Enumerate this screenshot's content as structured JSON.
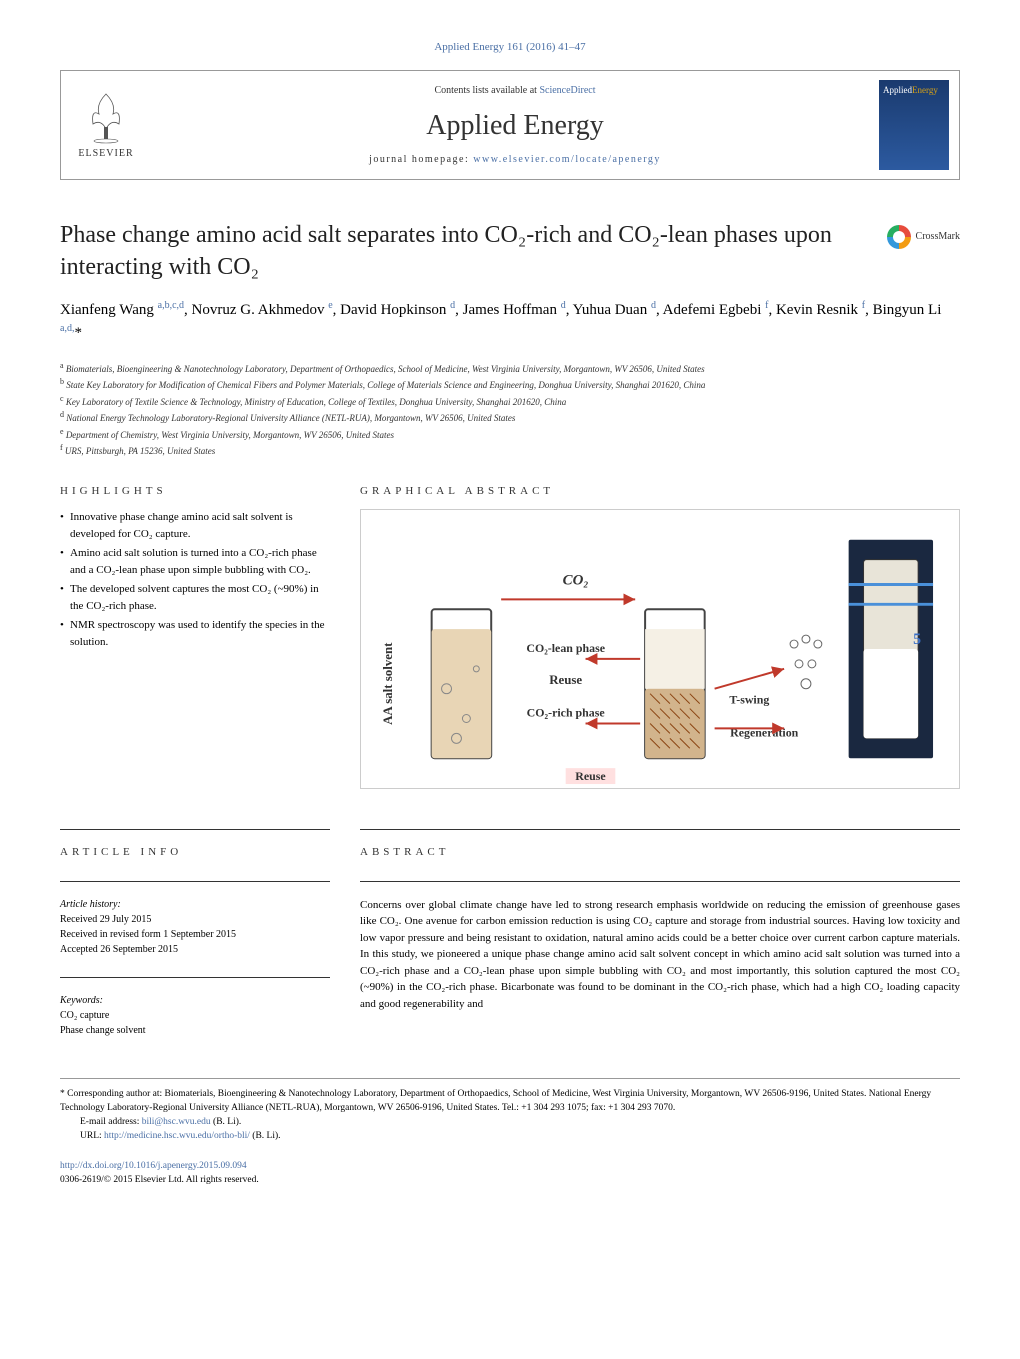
{
  "journal_ref": "Applied Energy 161 (2016) 41–47",
  "header": {
    "contents_prefix": "Contents lists available at ",
    "contents_link": "ScienceDirect",
    "journal_name": "Applied Energy",
    "homepage_prefix": "journal homepage: ",
    "homepage_link": "www.elsevier.com/locate/apenergy",
    "elsevier_label": "ELSEVIER",
    "cover_applied": "Applied",
    "cover_energy": "Energy"
  },
  "crossmark": "CrossMark",
  "title": "Phase change amino acid salt separates into CO₂-rich and CO₂-lean phases upon interacting with CO₂",
  "authors_html": "Xianfeng Wang <sup>a,b,c,d</sup>, Novruz G. Akhmedov <sup>e</sup>, David Hopkinson <sup>d</sup>, James Hoffman <sup>d</sup>, Yuhua Duan <sup>d</sup>, Adefemi Egbebi <sup>f</sup>, Kevin Resnik <sup>f</sup>, Bingyun Li <sup>a,d,</sup>*",
  "affiliations": [
    {
      "sup": "a",
      "text": "Biomaterials, Bioengineering & Nanotechnology Laboratory, Department of Orthopaedics, School of Medicine, West Virginia University, Morgantown, WV 26506, United States"
    },
    {
      "sup": "b",
      "text": "State Key Laboratory for Modification of Chemical Fibers and Polymer Materials, College of Materials Science and Engineering, Donghua University, Shanghai 201620, China"
    },
    {
      "sup": "c",
      "text": "Key Laboratory of Textile Science & Technology, Ministry of Education, College of Textiles, Donghua University, Shanghai 201620, China"
    },
    {
      "sup": "d",
      "text": "National Energy Technology Laboratory-Regional University Alliance (NETL-RUA), Morgantown, WV 26506, United States"
    },
    {
      "sup": "e",
      "text": "Department of Chemistry, West Virginia University, Morgantown, WV 26506, United States"
    },
    {
      "sup": "f",
      "text": "URS, Pittsburgh, PA 15236, United States"
    }
  ],
  "highlights_heading": "HIGHLIGHTS",
  "highlights": [
    "Innovative phase change amino acid salt solvent is developed for CO₂ capture.",
    "Amino acid salt solution is turned into a CO₂-rich phase and a CO₂-lean phase upon simple bubbling with CO₂.",
    "The developed solvent captures the most CO₂ (~90%) in the CO₂-rich phase.",
    "NMR spectroscopy was used to identify the species in the solution."
  ],
  "graphical_heading": "GRAPHICAL ABSTRACT",
  "graphical": {
    "co2_label": "CO₂",
    "ylabel": "AA salt solvent",
    "lean_label": "CO₂-lean phase",
    "rich_label": "CO₂-rich phase",
    "reuse_label": "Reuse",
    "tswing_label": "T-swing",
    "regen_label": "Regeneration",
    "reuse2_label": "Reuse",
    "vial_num": "5",
    "arrow_color": "#c0392b",
    "text_color": "#333333",
    "hatch_color": "#8b4513",
    "fill_color": "#d2b48c",
    "border_color": "#444444"
  },
  "article_info_heading": "ARTICLE INFO",
  "article_info": {
    "history_label": "Article history:",
    "received": "Received 29 July 2015",
    "revised": "Received in revised form 1 September 2015",
    "accepted": "Accepted 26 September 2015",
    "keywords_label": "Keywords:",
    "keywords": [
      "CO₂ capture",
      "Phase change solvent"
    ]
  },
  "abstract_heading": "ABSTRACT",
  "abstract": "Concerns over global climate change have led to strong research emphasis worldwide on reducing the emission of greenhouse gases like CO₂. One avenue for carbon emission reduction is using CO₂ capture and storage from industrial sources. Having low toxicity and low vapor pressure and being resistant to oxidation, natural amino acids could be a better choice over current carbon capture materials. In this study, we pioneered a unique phase change amino acid salt solvent concept in which amino acid salt solution was turned into a CO₂-rich phase and a CO₂-lean phase upon simple bubbling with CO₂ and most importantly, this solution captured the most CO₂ (~90%) in the CO₂-rich phase. Bicarbonate was found to be dominant in the CO₂-rich phase, which had a high CO₂ loading capacity and good regenerability and",
  "footnote": {
    "corr_symbol": "*",
    "corr_text": "Corresponding author at: Biomaterials, Bioengineering & Nanotechnology Laboratory, Department of Orthopaedics, School of Medicine, West Virginia University, Morgantown, WV 26506-9196, United States. National Energy Technology Laboratory-Regional University Alliance (NETL-RUA), Morgantown, WV 26506-9196, United States. Tel.: +1 304 293 1075; fax: +1 304 293 7070.",
    "email_label": "E-mail address: ",
    "email": "bili@hsc.wvu.edu",
    "email_suffix": " (B. Li).",
    "url_label": "URL: ",
    "url": "http://medicine.hsc.wvu.edu/ortho-bli/",
    "url_suffix": " (B. Li)."
  },
  "doi": {
    "link": "http://dx.doi.org/10.1016/j.apenergy.2015.09.094",
    "copyright": "0306-2619/© 2015 Elsevier Ltd. All rights reserved."
  },
  "colors": {
    "link": "#4a6fa5",
    "cover_bg1": "#1a3a6e",
    "cover_bg2": "#2c5aa0",
    "cover_energy": "#d4a017"
  }
}
